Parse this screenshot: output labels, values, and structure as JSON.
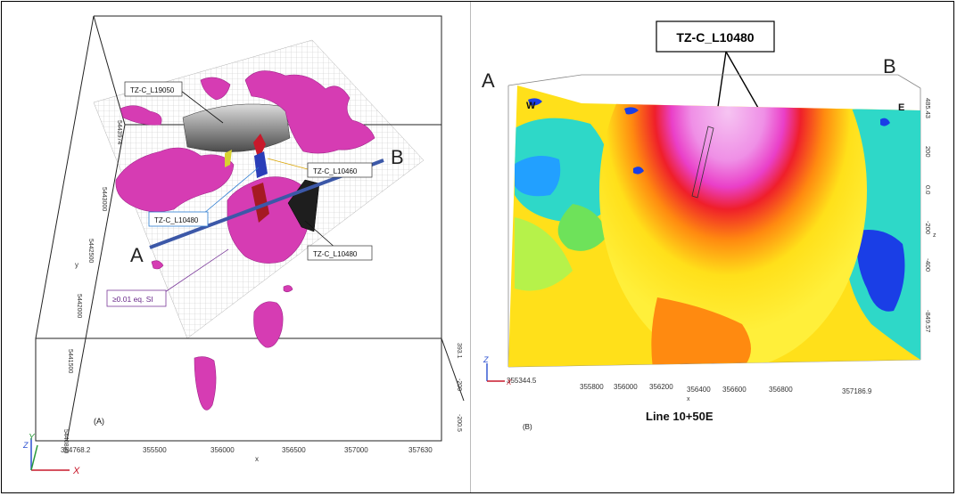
{
  "panel_a": {
    "caption": "(A)",
    "x_axis_label": "x",
    "y_axis_label": "y",
    "x_ticks": [
      "354768.2",
      "355500",
      "356000",
      "356500",
      "357000",
      "357630"
    ],
    "y_ticks": [
      "5440830",
      "5441500",
      "5442000",
      "5442500",
      "5443000",
      "5443974"
    ],
    "z_ticks_right": [
      "393.1",
      "-200",
      "-200.5"
    ],
    "section_labels": [
      "TZ-C_L19050",
      "TZ-C_L10460",
      "TZ-C_L10480",
      "TZ-C_L10480"
    ],
    "threshold_label": "≥0.01 eq. SI",
    "point_a": "A",
    "point_b": "B",
    "triad_x": "X",
    "triad_y": "Y",
    "triad_z": "Z"
  },
  "panel_b": {
    "caption": "(B)",
    "section_title": "Line 10+50E",
    "top_label": "TZ-C_L10480",
    "point_a": "A",
    "point_b": "B",
    "west_label": "W",
    "east_label": "E",
    "x_axis_label": "x",
    "x_ticks": [
      "355344.5",
      "355800",
      "356000",
      "356200",
      "356400",
      "356600",
      "356800",
      "357186.9"
    ],
    "z_axis_label": "z",
    "z_ticks": [
      "485.43",
      "200",
      "0.0",
      "-200",
      "-400",
      "-849.57"
    ],
    "triad_z": "Z",
    "triad_x": "X"
  },
  "colors": {
    "section_line": "#3c58a8",
    "susceptibility_body": "#d63cb3",
    "frame": "#000000"
  }
}
